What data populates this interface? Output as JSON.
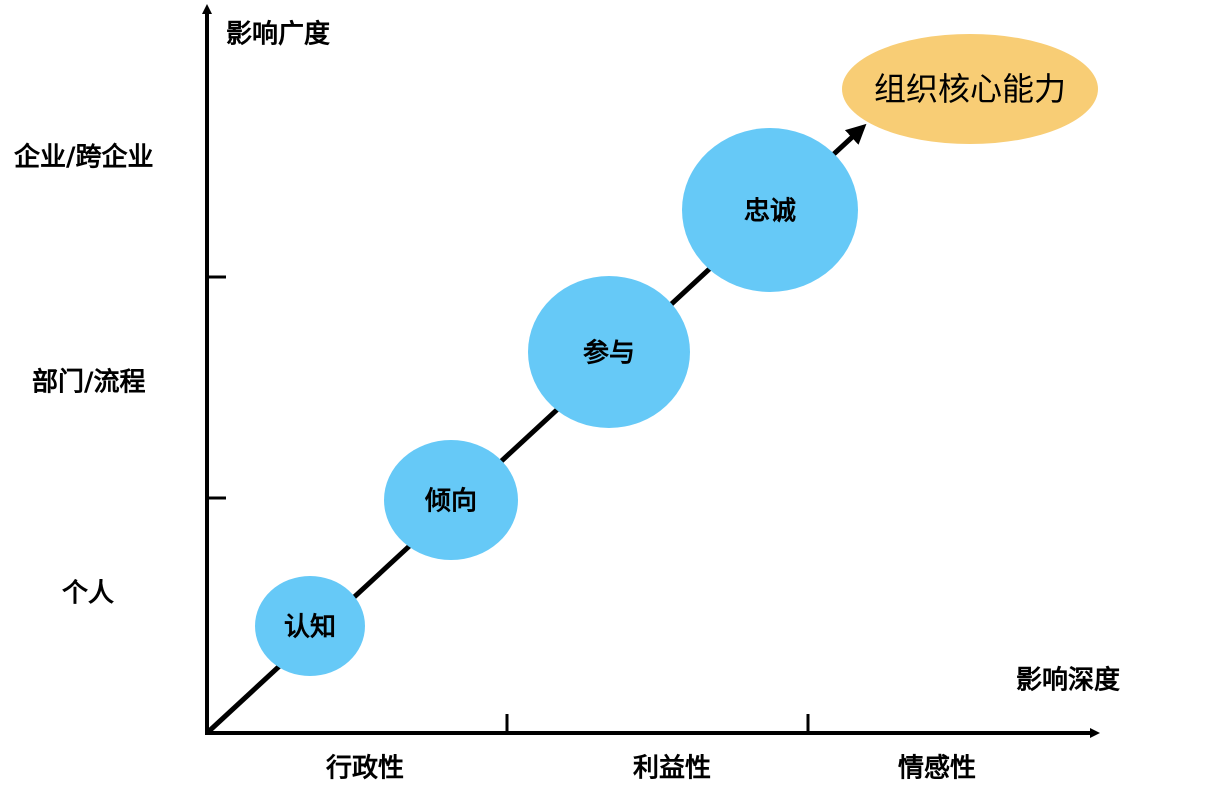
{
  "axes": {
    "y_title": "影响广度",
    "x_title": "影响深度",
    "y_levels": [
      "企业/跨企业",
      "部门/流程",
      "个人"
    ],
    "x_levels": [
      "行政性",
      "利益性",
      "情感性"
    ]
  },
  "nodes": [
    {
      "label": "认知"
    },
    {
      "label": "倾向"
    },
    {
      "label": "参与"
    },
    {
      "label": "忠诚"
    }
  ],
  "goal": {
    "label": "组织核心能力"
  }
}
